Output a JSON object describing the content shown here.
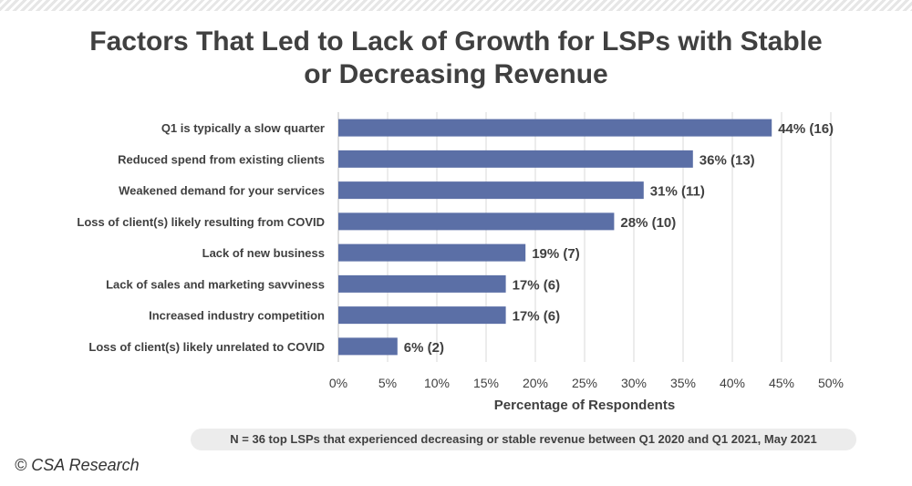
{
  "title_lines": [
    "Factors That Led to Lack of Growth for LSPs with Stable",
    "or Decreasing Revenue"
  ],
  "footnote": "N = 36 top LSPs that experienced decreasing or stable revenue between Q1 2020 and Q1 2021, May 2021",
  "copyright": "© CSA Research",
  "colors": {
    "bar": "#5b6fa6",
    "grid": "#d9d9d9",
    "text": "#404040"
  },
  "chart_data": {
    "type": "bar",
    "orientation": "horizontal",
    "categories": [
      "Q1 is typically a slow quarter",
      "Reduced spend from existing clients ",
      "Weakened demand for your services",
      "Loss of client(s) likely resulting from COVID",
      "Lack of new business",
      "Lack of sales and marketing savviness",
      "Increased industry competition",
      "Loss of client(s) likely unrelated to COVID"
    ],
    "values": [
      44,
      36,
      31,
      28,
      19,
      17,
      17,
      6
    ],
    "data_labels": [
      "44% (16)",
      "36% (13)",
      "31% (11)",
      "28% (10)",
      "19% (7)",
      "17% (6)",
      "17% (6)",
      "6% (2)"
    ],
    "xlabel": "Percentage of Respondents",
    "xlim": [
      0,
      50
    ],
    "xticks": [
      "0%",
      "5%",
      "10%",
      "15%",
      "20%",
      "25%",
      "30%",
      "35%",
      "40%",
      "45%",
      "50%"
    ],
    "grid": "vertical"
  }
}
